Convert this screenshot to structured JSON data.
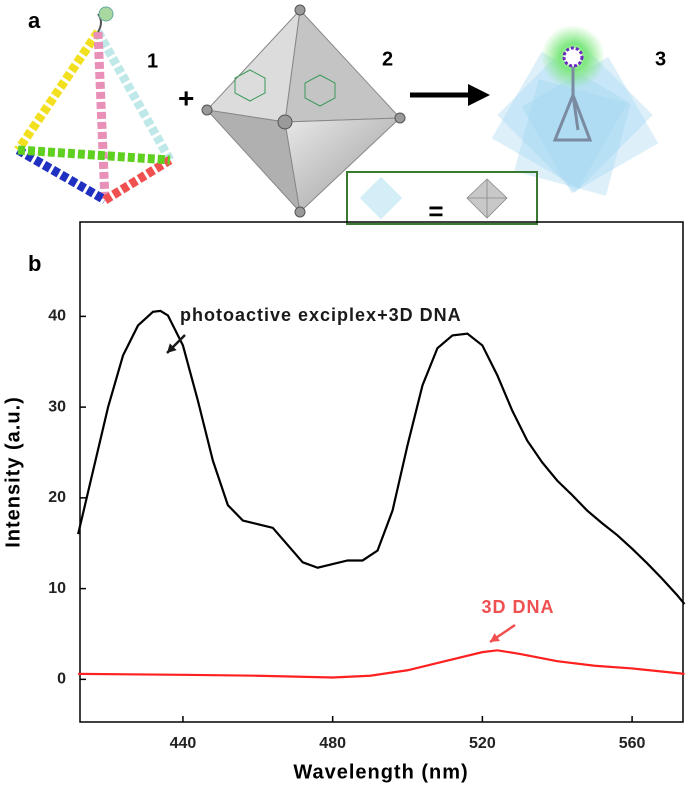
{
  "panel_a": {
    "label": "a",
    "items": [
      "1",
      "2",
      "3"
    ],
    "plus": "+",
    "equals": "="
  },
  "chart_data": {
    "type": "line",
    "panel_label": "b",
    "x_label": "Wavelength (nm)",
    "y_label": "Intensity (a.u.)",
    "xlim": [
      412.5,
      573.6
    ],
    "ylim": [
      -4.7,
      50.4
    ],
    "xticks": [
      440,
      480,
      520,
      560
    ],
    "yticks": [
      0,
      10,
      20,
      30,
      40
    ],
    "series": [
      {
        "color": "#000000",
        "x": [
          412,
          416,
          420,
          424,
          428,
          432,
          434,
          436,
          440,
          444,
          448,
          452,
          456,
          460,
          464,
          468,
          472,
          476,
          480,
          484,
          488,
          492,
          496,
          500,
          504,
          508,
          512,
          516,
          520,
          524,
          528,
          532,
          536,
          540,
          544,
          548,
          552,
          556,
          560,
          564,
          568,
          572,
          574
        ],
        "values": [
          16,
          23,
          30,
          35.7,
          39,
          40.5,
          40.6,
          40.1,
          36.8,
          30.7,
          24.1,
          19.2,
          17.5,
          17.1,
          16.7,
          14.8,
          12.9,
          12.3,
          12.7,
          13.1,
          13.1,
          14.2,
          18.6,
          25.8,
          32.4,
          36.5,
          37.9,
          38.1,
          36.8,
          33.5,
          29.6,
          26.3,
          23.9,
          21.9,
          20.3,
          18.6,
          17.2,
          15.9,
          14.4,
          12.8,
          11.1,
          9.3,
          8.3
        ]
      },
      {
        "color": "#ff2020",
        "x": [
          412,
          440,
          460,
          480,
          490,
          500,
          510,
          520,
          524,
          530,
          540,
          550,
          560,
          574
        ],
        "values": [
          0.6,
          0.5,
          0.4,
          0.2,
          0.4,
          1.0,
          2.0,
          3.0,
          3.2,
          2.8,
          2.0,
          1.5,
          1.2,
          0.6
        ]
      }
    ],
    "annotations": [
      {
        "text": "photoactive exciplex+3D DNA",
        "color": "#1a1a1a"
      },
      {
        "text": "3D DNA",
        "color": "#f05050"
      }
    ]
  }
}
